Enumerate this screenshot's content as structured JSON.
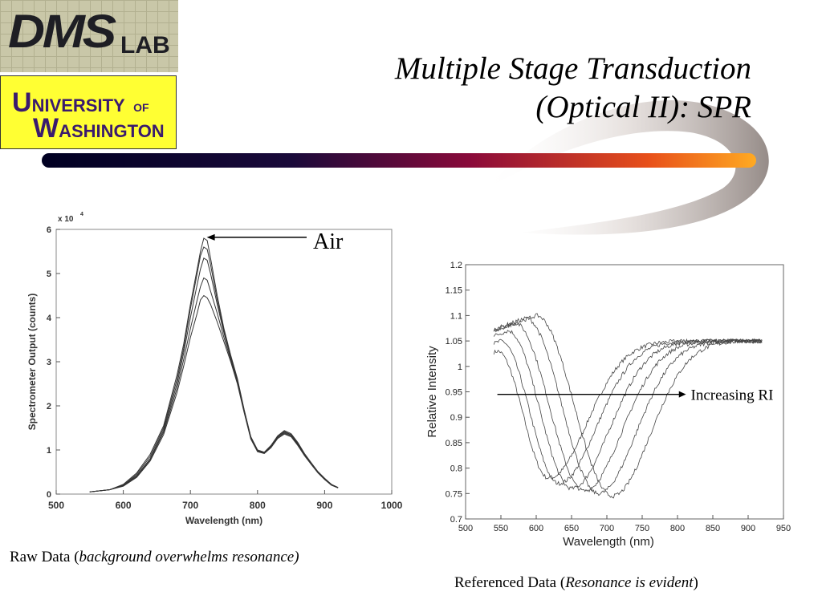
{
  "logos": {
    "dms": {
      "main": "DMS",
      "sub": "LAB"
    },
    "uw": {
      "line1_big": "U",
      "line1_rest": "NIVERSITY",
      "line1_of": "OF",
      "line2_big": "W",
      "line2_rest": "ASHINGTON"
    }
  },
  "title": {
    "line1": "Multiple Stage Transduction",
    "line2": "(Optical II):  SPR"
  },
  "colors": {
    "bar_start": "#000033",
    "bar_mid": "#990033",
    "bar_end": "#ff9900",
    "swoosh": "#c9c0bb"
  },
  "captions": {
    "left_plain": "Raw Data (",
    "left_italic": "background overwhelms resonance)",
    "right_plain": "Referenced Data (",
    "right_italic": "Resonance is evident",
    "right_close": ")"
  },
  "chart_data": [
    {
      "type": "line",
      "xlabel": "Wavelength (nm)",
      "ylabel": "Spectrometer Output (counts)",
      "y_multiplier": "x 10",
      "y_multiplier_exp": "4",
      "xlim": [
        500,
        1000
      ],
      "ylim": [
        0,
        6
      ],
      "xticks": [
        "500",
        "600",
        "700",
        "800",
        "900",
        "1000"
      ],
      "yticks": [
        "0",
        "1",
        "2",
        "3",
        "4",
        "5",
        "6"
      ],
      "annotation": "Air",
      "x": [
        550,
        580,
        600,
        620,
        640,
        660,
        680,
        690,
        700,
        710,
        715,
        720,
        725,
        730,
        740,
        750,
        760,
        770,
        780,
        790,
        800,
        810,
        820,
        830,
        840,
        850,
        860,
        870,
        880,
        890,
        900,
        910,
        920
      ],
      "series": [
        {
          "values": [
            0.05,
            0.1,
            0.2,
            0.45,
            0.85,
            1.5,
            2.6,
            3.3,
            4.2,
            5.0,
            5.4,
            5.6,
            5.55,
            5.2,
            4.4,
            3.7,
            3.1,
            2.6,
            1.9,
            1.3,
            1.0,
            0.95,
            1.1,
            1.3,
            1.42,
            1.35,
            1.15,
            0.9,
            0.7,
            0.5,
            0.35,
            0.22,
            0.15
          ]
        },
        {
          "values": [
            0.05,
            0.1,
            0.22,
            0.48,
            0.9,
            1.55,
            2.7,
            3.4,
            4.3,
            5.1,
            5.5,
            5.8,
            5.75,
            5.35,
            4.5,
            3.75,
            3.15,
            2.62,
            1.92,
            1.3,
            1.0,
            0.95,
            1.1,
            1.32,
            1.44,
            1.37,
            1.17,
            0.92,
            0.71,
            0.51,
            0.36,
            0.22,
            0.15
          ]
        },
        {
          "values": [
            0.05,
            0.1,
            0.2,
            0.42,
            0.8,
            1.45,
            2.5,
            3.2,
            4.0,
            4.75,
            5.1,
            5.35,
            5.3,
            5.0,
            4.3,
            3.65,
            3.1,
            2.6,
            1.9,
            1.28,
            0.98,
            0.94,
            1.08,
            1.3,
            1.4,
            1.34,
            1.14,
            0.9,
            0.7,
            0.5,
            0.35,
            0.22,
            0.15
          ]
        },
        {
          "values": [
            0.05,
            0.1,
            0.19,
            0.4,
            0.78,
            1.4,
            2.4,
            3.05,
            3.75,
            4.4,
            4.7,
            4.9,
            4.85,
            4.6,
            4.1,
            3.55,
            3.05,
            2.55,
            1.88,
            1.27,
            0.97,
            0.93,
            1.07,
            1.28,
            1.38,
            1.32,
            1.12,
            0.88,
            0.68,
            0.49,
            0.34,
            0.21,
            0.14
          ]
        },
        {
          "values": [
            0.05,
            0.1,
            0.18,
            0.38,
            0.75,
            1.35,
            2.3,
            2.9,
            3.55,
            4.1,
            4.4,
            4.5,
            4.45,
            4.3,
            3.9,
            3.45,
            3.0,
            2.5,
            1.85,
            1.25,
            0.96,
            0.92,
            1.05,
            1.26,
            1.36,
            1.3,
            1.1,
            0.87,
            0.67,
            0.48,
            0.33,
            0.2,
            0.14
          ]
        }
      ]
    },
    {
      "type": "line",
      "xlabel": "Wavelength (nm)",
      "ylabel": "Relative Intensity",
      "xlim": [
        500,
        950
      ],
      "ylim": [
        0.7,
        1.2
      ],
      "xticks": [
        "500",
        "550",
        "600",
        "650",
        "700",
        "750",
        "800",
        "850",
        "900",
        "950"
      ],
      "yticks": [
        "0.7",
        "0.75",
        "0.8",
        "0.85",
        "0.9",
        "0.95",
        "1",
        "1.05",
        "1.1",
        "1.15",
        "1.2"
      ],
      "annotation": "Increasing RI",
      "x_range": [
        540,
        920
      ],
      "series": [
        {
          "min_x": 618,
          "min_y": 0.78,
          "left_peak_x": 545,
          "left_peak_y": 1.03
        },
        {
          "min_x": 632,
          "min_y": 0.77,
          "left_peak_x": 550,
          "left_peak_y": 1.05
        },
        {
          "min_x": 650,
          "min_y": 0.76,
          "left_peak_x": 560,
          "left_peak_y": 1.07
        },
        {
          "min_x": 668,
          "min_y": 0.755,
          "left_peak_x": 570,
          "left_peak_y": 1.085
        },
        {
          "min_x": 688,
          "min_y": 0.75,
          "left_peak_x": 585,
          "left_peak_y": 1.095
        },
        {
          "min_x": 708,
          "min_y": 0.745,
          "left_peak_x": 600,
          "left_peak_y": 1.1
        }
      ],
      "right_plateau": 1.05
    }
  ]
}
